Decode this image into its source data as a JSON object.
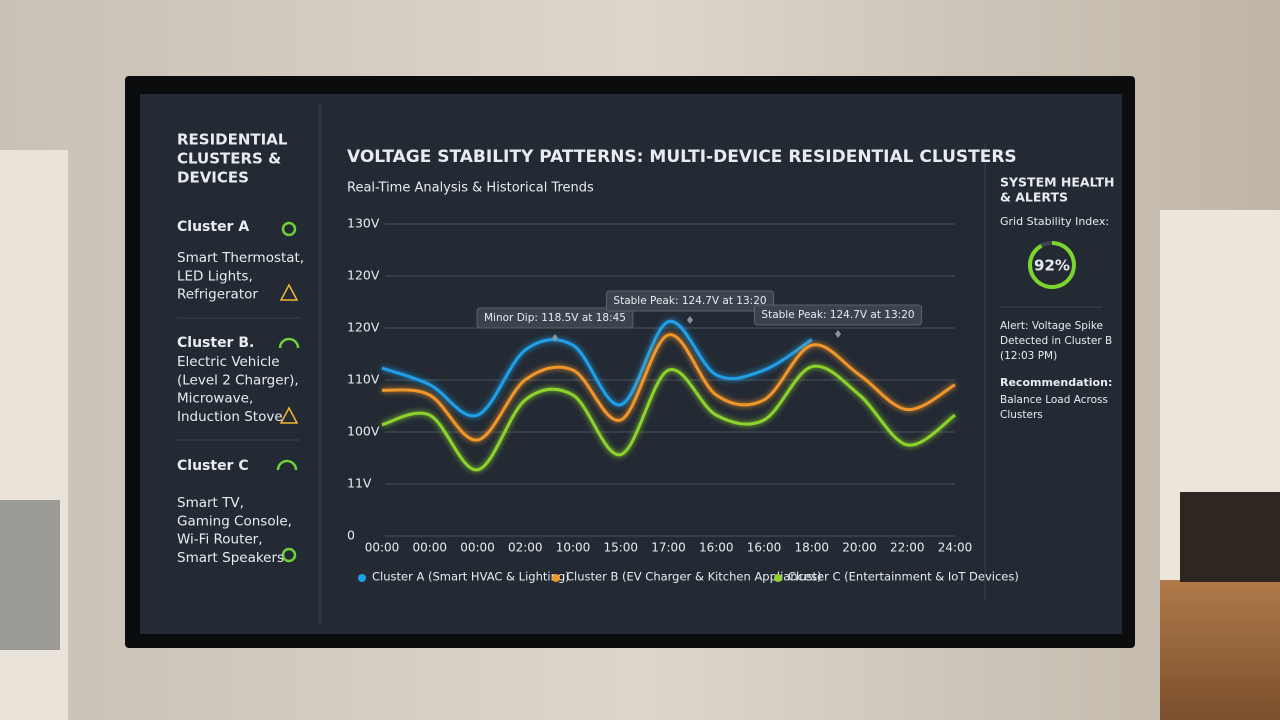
{
  "sidebar": {
    "title": [
      "RESIDENTIAL",
      "CLUSTERS &",
      "DEVICES"
    ],
    "clusters": [
      {
        "name": "Cluster A",
        "devices": [
          "Smart Thermostat,",
          "LED Lights,",
          "Refrigerator"
        ]
      },
      {
        "name": "Cluster B.",
        "devices": [
          "Electric Vehicle",
          "(Level 2 Charger),",
          "Microwave,",
          "Induction Stove"
        ]
      },
      {
        "name": "Cluster C",
        "devices": [
          "Smart TV,",
          "Gaming Console,",
          "Wi-Fi Router,",
          "Smart Speakers"
        ]
      }
    ]
  },
  "chart_data": {
    "type": "line",
    "title": "VOLTAGE STABILITY PATTERNS: MULTI-DEVICE RESIDENTIAL CLUSTERS",
    "subtitle": "Real-Time Analysis & Historical Trends",
    "categories": [
      "00:00",
      "00:00",
      "00:00",
      "02:00",
      "10:00",
      "15:00",
      "17:00",
      "16:00",
      "16:00",
      "18:00",
      "20:00",
      "22:00",
      "24:00"
    ],
    "series": [
      {
        "name": "Cluster A (Smart HVAC & Lighting)",
        "color": "#1fa0e8",
        "values": [
          109.2,
          106.8,
          102.4,
          111.8,
          112.5,
          103.9,
          115.9,
          108.2,
          108.9,
          113.3,
          null,
          null,
          null
        ]
      },
      {
        "name": "Cluster B (EV Charger & Kitchen Appliances)",
        "color": "#f0962a",
        "values": [
          106.0,
          105.3,
          98.8,
          107.5,
          108.9,
          101.7,
          114.0,
          105.3,
          104.6,
          112.5,
          108.2,
          103.2,
          106.8
        ]
      },
      {
        "name": "Cluster C (Entertainment & IoT Devices)",
        "color": "#8ed22c",
        "values": [
          101.0,
          102.4,
          94.5,
          104.6,
          105.3,
          96.7,
          108.9,
          102.4,
          101.7,
          109.4,
          105.3,
          98.1,
          102.4
        ]
      }
    ],
    "ylim": [
      90,
      130
    ],
    "yticks": [
      {
        "value": 130,
        "label": "130V"
      },
      {
        "value": 120,
        "label": "120V"
      },
      {
        "value": 120,
        "label": "120V"
      },
      {
        "value": 110,
        "label": "110V"
      },
      {
        "value": 100,
        "label": "100V"
      },
      {
        "value": 11,
        "label": "11V"
      },
      0
    ],
    "grid": true,
    "annotations": [
      "Minor Dip: 118.5V at 18:45",
      "Stable Peak: 124.7V at 13:20",
      "Stable Peak: 124.7V at 13:20"
    ]
  },
  "health": {
    "title": [
      "SYSTEM HEALTH",
      "& ALERTS"
    ],
    "index_label": "Grid Stability Index:",
    "index": {
      "value": 92,
      "label": "92%"
    },
    "alert": [
      "Alert: Voltage Spike",
      "Detected in Cluster B",
      "(12:03 PM)"
    ],
    "recommendation_title": "Recommendation:",
    "recommendation": [
      "Balance Load Across",
      "Clusters"
    ]
  }
}
